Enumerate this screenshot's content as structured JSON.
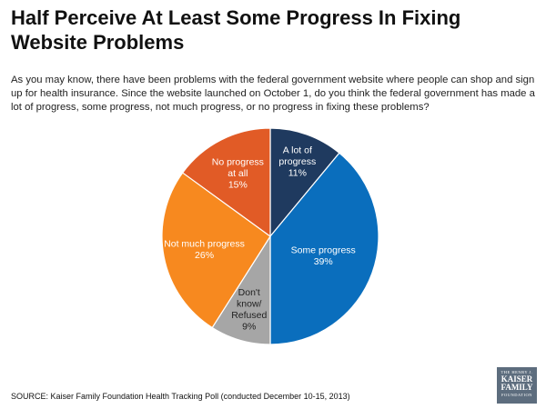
{
  "title": "Half Perceive At Least Some Progress In Fixing Website Problems",
  "question": "As you may know, there have been problems with the federal government website where people can shop and sign up for health insurance. Since the website launched on October 1, do you think the federal government has made a lot of progress, some progress, not much progress, or no progress in fixing these problems?",
  "source": "SOURCE: Kaiser Family Foundation Health Tracking Poll (conducted December 10-15, 2013)",
  "logo": {
    "line1": "THE HENRY J.",
    "line2": "KAISER",
    "line3": "FAMILY",
    "line4": "FOUNDATION"
  },
  "chart_data": {
    "type": "pie",
    "start_at": "12 o'clock, clockwise",
    "slices": [
      {
        "label_lines": [
          "A lot of",
          "progress"
        ],
        "value": 11,
        "value_label": "11%",
        "color": "#1f3a5f"
      },
      {
        "label_lines": [
          "Some progress"
        ],
        "value": 39,
        "value_label": "39%",
        "color": "#0a6ebd"
      },
      {
        "label_lines": [
          "Don't",
          "know/",
          "Refused"
        ],
        "value": 9,
        "value_label": "9%",
        "color": "#a6a6a6"
      },
      {
        "label_lines": [
          "Not much progress"
        ],
        "value": 26,
        "value_label": "26%",
        "color": "#f7891f"
      },
      {
        "label_lines": [
          "No progress",
          "at all"
        ],
        "value": 15,
        "value_label": "15%",
        "color": "#e15b26"
      }
    ]
  }
}
